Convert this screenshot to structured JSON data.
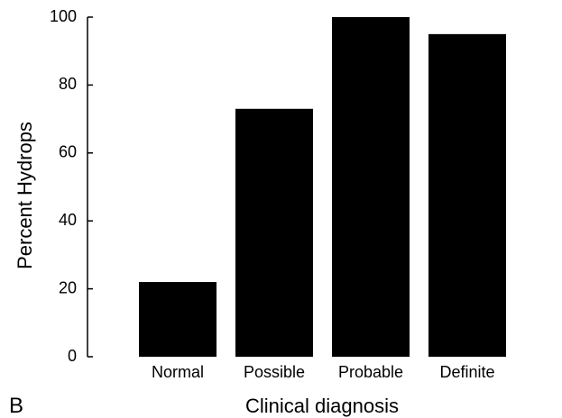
{
  "chart_data": {
    "type": "bar",
    "categories": [
      "Normal",
      "Possible",
      "Probable",
      "Definite"
    ],
    "values": [
      22,
      73,
      100,
      95
    ],
    "title": "",
    "xlabel": "Clinical diagnosis",
    "ylabel": "Percent Hydrops",
    "ylim": [
      0,
      100
    ],
    "yticks": [
      0,
      20,
      40,
      60,
      80,
      100
    ],
    "grid": false,
    "bar_color": "#000000"
  },
  "panel_label": "B"
}
